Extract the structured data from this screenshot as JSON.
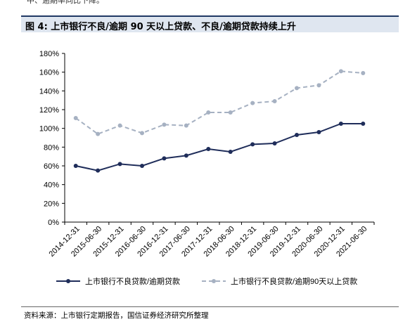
{
  "top_fragment": "中、逾期率同比下降。",
  "figure_title": "图 4:  上市银行不良/逾期 90 天以上贷款、不良/逾期贷款持续上升",
  "source": "资料来源：上市银行定期报告，国信证券经济研究所整理",
  "colors": {
    "series1": "#1f2d5a",
    "series2": "#a6b1c2",
    "title_bg": "#dfe6f0",
    "title_border": "#1f3864"
  },
  "chart_data": {
    "type": "line",
    "title": "",
    "xlabel": "",
    "ylabel": "",
    "ylim": [
      0,
      180
    ],
    "y_unit": "%",
    "y_ticks": [
      "0%",
      "20%",
      "40%",
      "60%",
      "80%",
      "100%",
      "120%",
      "140%",
      "160%",
      "180%"
    ],
    "categories": [
      "2014-12-31",
      "2015-06-30",
      "2015-12-31",
      "2016-06-30",
      "2016-12-31",
      "2017-06-30",
      "2017-12-31",
      "2018-06-30",
      "2018-12-31",
      "2019-06-30",
      "2019-12-31",
      "2020-06-30",
      "2020-12-31",
      "2021-06-30"
    ],
    "series": [
      {
        "name": "上市银行不良贷款/逾期贷款",
        "style": "solid",
        "values": [
          60,
          55,
          62,
          60,
          68,
          71,
          78,
          75,
          83,
          84,
          93,
          96,
          105,
          105
        ]
      },
      {
        "name": "上市银行不良贷款/逾期90天以上贷款",
        "style": "dashed",
        "values": [
          111,
          94,
          103,
          95,
          104,
          103,
          117,
          117,
          127,
          129,
          143,
          146,
          161,
          159
        ]
      }
    ],
    "grid": false,
    "legend_position": "bottom"
  }
}
